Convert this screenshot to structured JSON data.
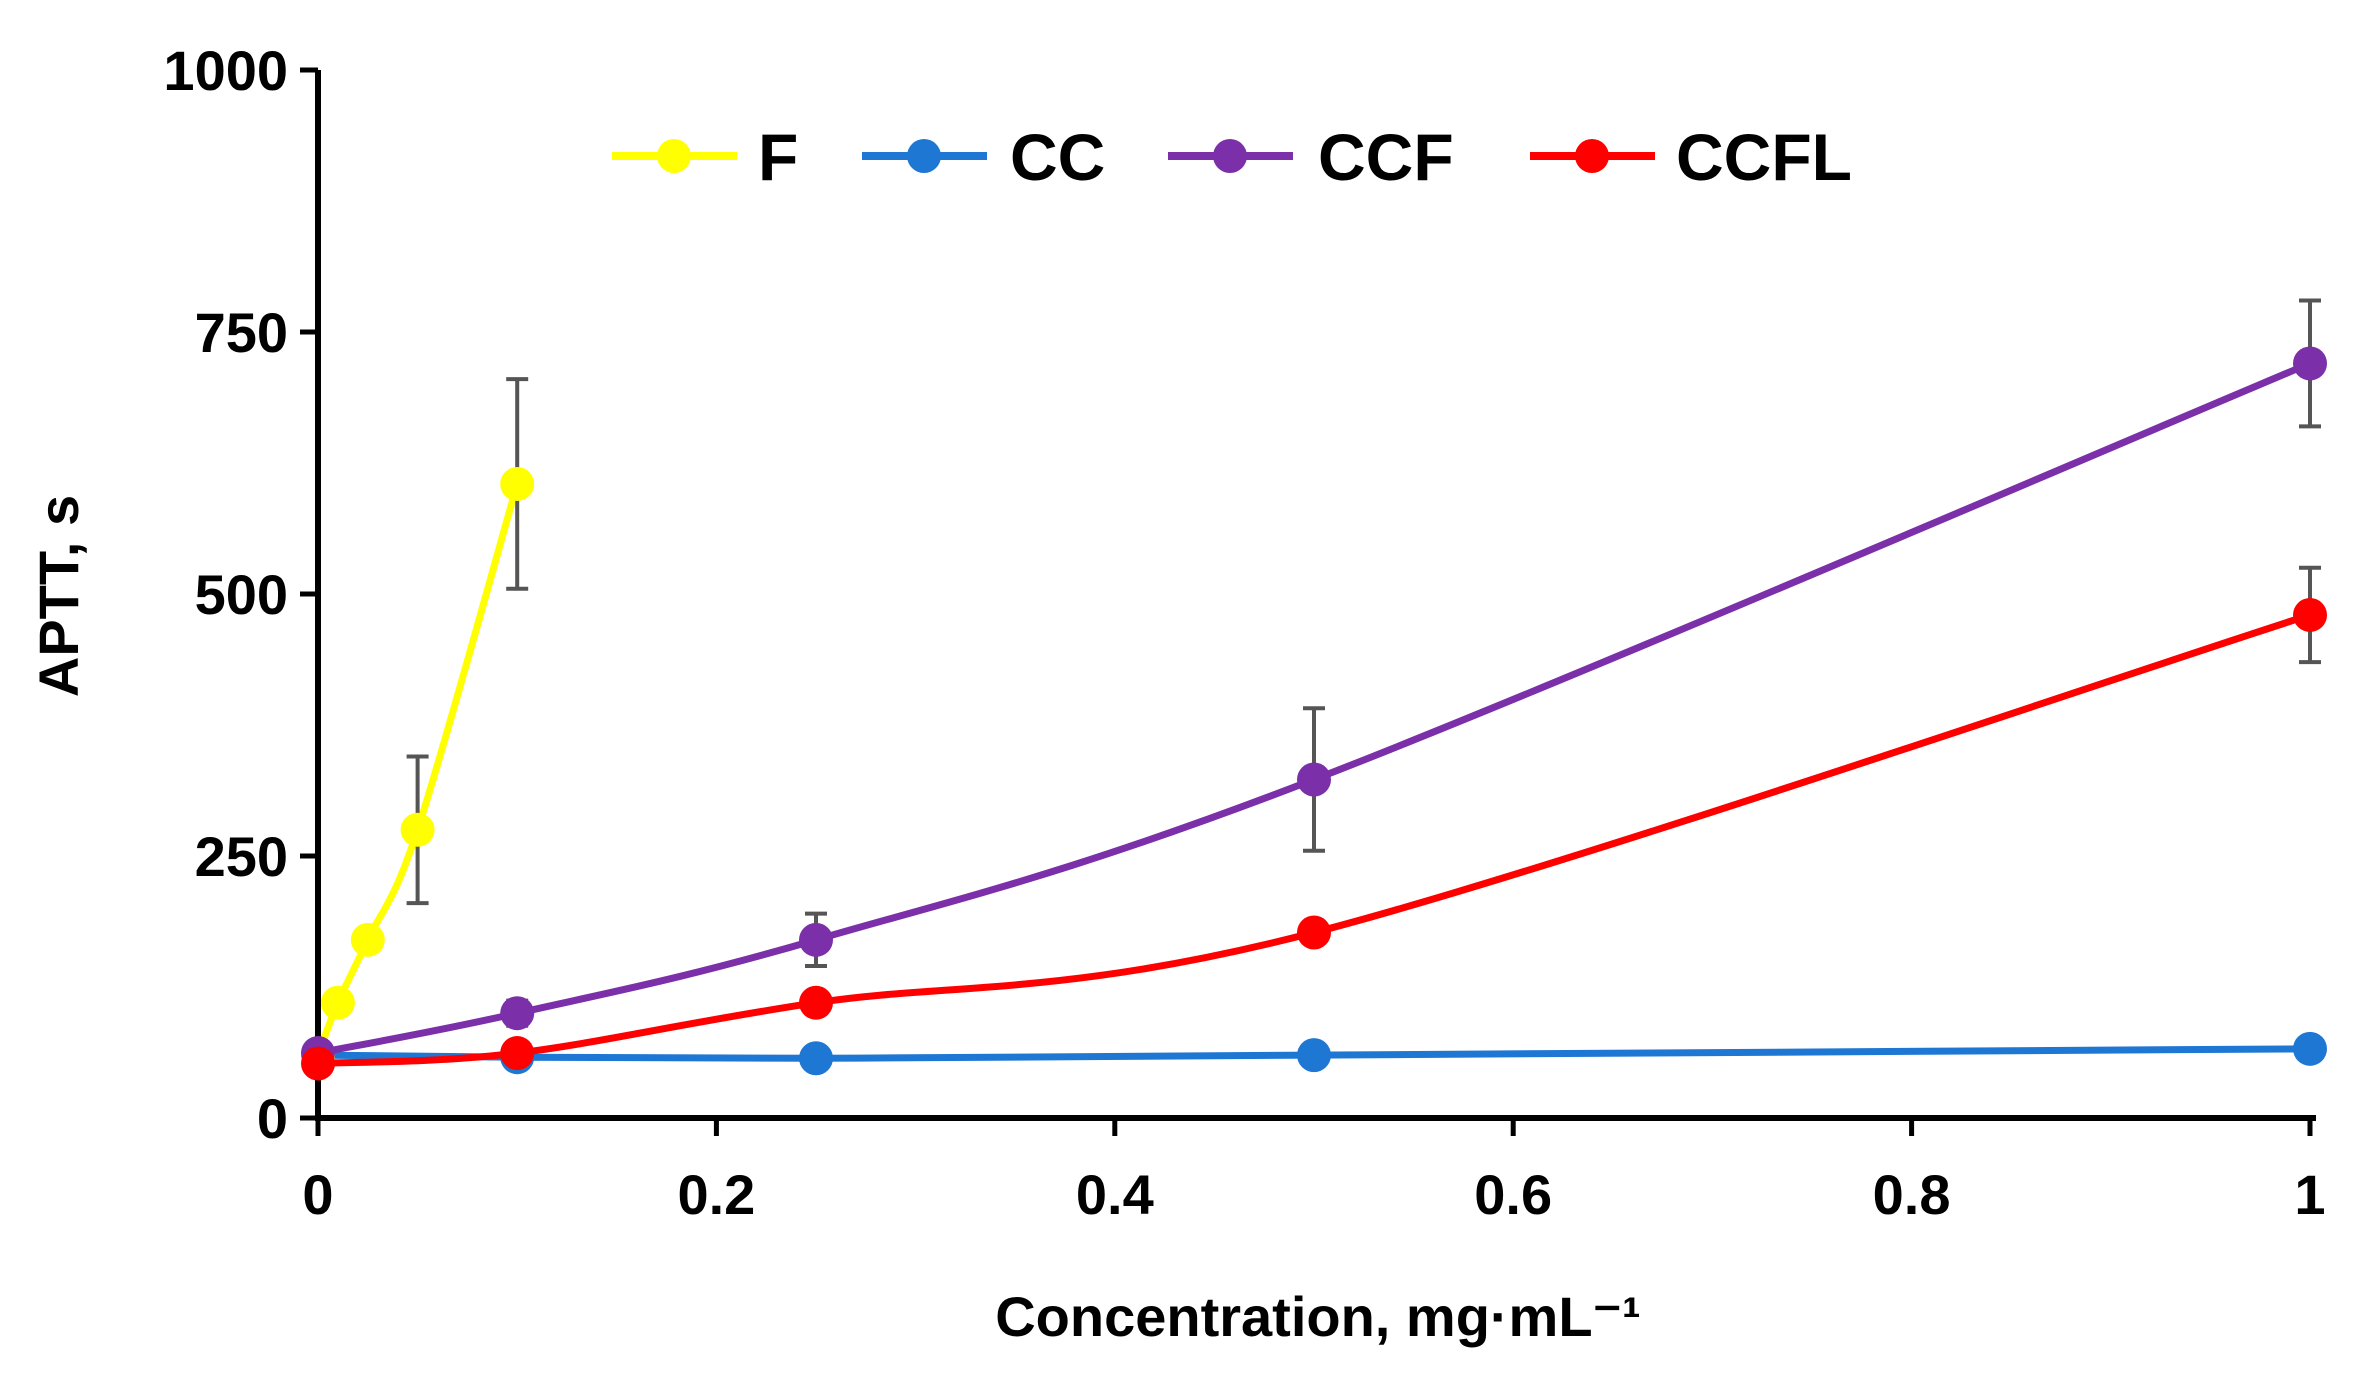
{
  "chart_data": {
    "type": "line",
    "title": "",
    "xlabel": "Concentration, mg·mL⁻¹",
    "ylabel": "APTT, s",
    "xlim": [
      0,
      1
    ],
    "ylim": [
      0,
      1000
    ],
    "x_ticks": [
      "0",
      "0.2",
      "0.4",
      "0.6",
      "0.8",
      "1"
    ],
    "y_ticks": [
      "0",
      "250",
      "500",
      "750",
      "1000"
    ],
    "grid": false,
    "legend_position": "top-center",
    "smooth_lines": true,
    "series": [
      {
        "name": "F",
        "color": "#FFFF00",
        "x": [
          0,
          0.01,
          0.025,
          0.05,
          0.1
        ],
        "y": [
          60,
          110,
          170,
          275,
          605
        ],
        "err": [
          0,
          0,
          0,
          70,
          100
        ]
      },
      {
        "name": "CC",
        "color": "#1F77D4",
        "x": [
          0,
          0.1,
          0.25,
          0.5,
          1
        ],
        "y": [
          60,
          58,
          57,
          60,
          66
        ],
        "err": [
          0,
          0,
          0,
          0,
          0
        ]
      },
      {
        "name": "CCF",
        "color": "#7B2FA8",
        "x": [
          0,
          0.1,
          0.25,
          0.5,
          1
        ],
        "y": [
          62,
          100,
          170,
          323,
          720
        ],
        "err": [
          0,
          12,
          25,
          68,
          60
        ]
      },
      {
        "name": "CCFL",
        "color": "#FF0000",
        "x": [
          0,
          0.1,
          0.25,
          0.5,
          1
        ],
        "y": [
          52,
          62,
          110,
          177,
          480
        ],
        "err": [
          0,
          0,
          0,
          0,
          45
        ]
      }
    ]
  }
}
